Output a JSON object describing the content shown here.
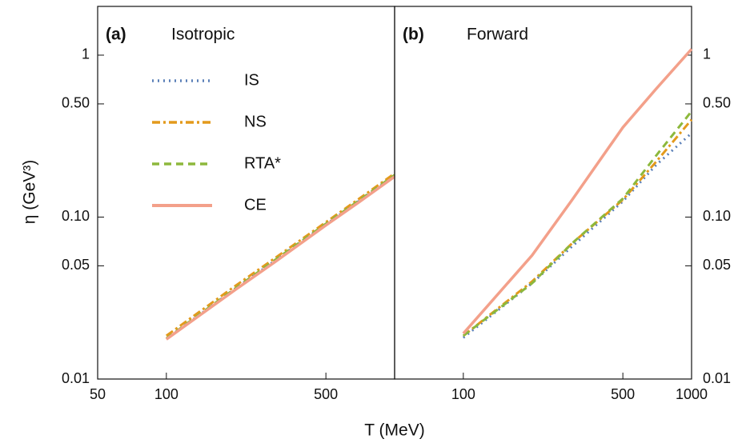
{
  "chart_data": [
    {
      "type": "line",
      "panel_label": "(a)",
      "title": "Isotropic",
      "xlabel": "T (MeV)",
      "ylabel": "η (GeV³)",
      "xscale": "log",
      "yscale": "log",
      "xlim": [
        50,
        1000
      ],
      "ylim": [
        0.01,
        2
      ],
      "xticks": [
        50,
        100,
        500
      ],
      "yticks": [
        0.01,
        0.05,
        {
          "value": 0.1,
          "label": "0.10"
        },
        {
          "value": 0.5,
          "label": "0.50"
        },
        1
      ],
      "ytick_side": "left",
      "legend": "upper left",
      "x": [
        100,
        200,
        300,
        500,
        700,
        1000
      ],
      "series": [
        {
          "name": "IS",
          "color": "#5b80b8",
          "style": "dotted",
          "values": [
            0.0177,
            0.036,
            0.054,
            0.09,
            0.126,
            0.18
          ]
        },
        {
          "name": "NS",
          "color": "#e39a1c",
          "style": "dashdot",
          "values": [
            0.0185,
            0.0375,
            0.056,
            0.093,
            0.13,
            0.186
          ]
        },
        {
          "name": "RTA*",
          "color": "#8db83c",
          "style": "dashed",
          "values": [
            0.0178,
            0.0362,
            0.0545,
            0.091,
            0.127,
            0.182
          ]
        },
        {
          "name": "CE",
          "color": "#f3a08a",
          "style": "solid",
          "values": [
            0.0176,
            0.0355,
            0.053,
            0.089,
            0.124,
            0.178
          ]
        }
      ]
    },
    {
      "type": "line",
      "panel_label": "(b)",
      "title": "Forward",
      "xscale": "log",
      "yscale": "log",
      "xlim": [
        50,
        1000
      ],
      "ylim": [
        0.01,
        2
      ],
      "xticks": [
        100,
        500,
        1000
      ],
      "yticks": [
        0.01,
        0.05,
        {
          "value": 0.1,
          "label": "0.10"
        },
        {
          "value": 0.5,
          "label": "0.50"
        },
        1
      ],
      "ytick_side": "right",
      "x": [
        100,
        200,
        300,
        500,
        700,
        1000
      ],
      "series": [
        {
          "name": "IS",
          "color": "#5b80b8",
          "style": "dotted",
          "values": [
            0.018,
            0.039,
            0.066,
            0.125,
            0.21,
            0.33
          ]
        },
        {
          "name": "NS",
          "color": "#e39a1c",
          "style": "dashdot",
          "values": [
            0.0185,
            0.04,
            0.069,
            0.128,
            0.22,
            0.4
          ]
        },
        {
          "name": "RTA*",
          "color": "#8db83c",
          "style": "dashed",
          "values": [
            0.0185,
            0.039,
            0.069,
            0.13,
            0.24,
            0.45
          ]
        },
        {
          "name": "CE",
          "color": "#f3a08a",
          "style": "solid",
          "values": [
            0.0191,
            0.058,
            0.128,
            0.358,
            0.62,
            1.09
          ]
        }
      ]
    }
  ]
}
